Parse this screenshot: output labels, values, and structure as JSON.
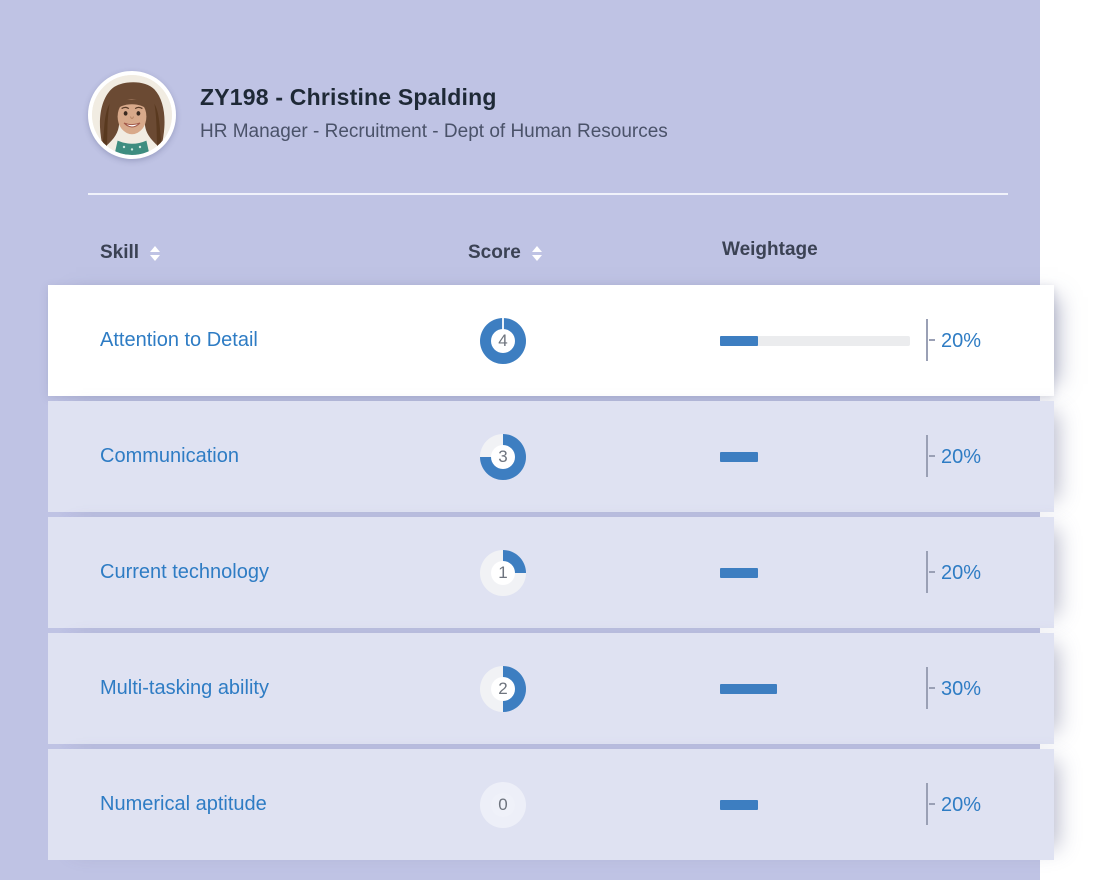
{
  "colors": {
    "page_background": "#bfc3e4",
    "row_background": "#dfe2f2",
    "highlight_row_background": "#ffffff",
    "accent_blue": "#2e7cc4",
    "fill_blue": "#3d7ec1",
    "ring_empty": "#f1f2f5"
  },
  "header": {
    "title": "ZY198 - Christine Spalding",
    "subtitle": "HR Manager - Recruitment - Dept of Human Resources"
  },
  "icons": {
    "sort": "sort-arrows-icon",
    "avatar": "employee-photo"
  },
  "table": {
    "columns": [
      {
        "key": "skill",
        "label": "Skill",
        "sortable": true
      },
      {
        "key": "score",
        "label": "Score",
        "sortable": true
      },
      {
        "key": "weightage",
        "label": "Weightage",
        "sortable": false
      }
    ],
    "score_max": 4,
    "rows": [
      {
        "skill": "Attention to Detail",
        "score": 4,
        "weightage_percent": 20,
        "weightage_label": "20%",
        "highlighted": true
      },
      {
        "skill": "Communication",
        "score": 3,
        "weightage_percent": 20,
        "weightage_label": "20%",
        "highlighted": false
      },
      {
        "skill": "Current technology",
        "score": 1,
        "weightage_percent": 20,
        "weightage_label": "20%",
        "highlighted": false
      },
      {
        "skill": "Multi-tasking ability",
        "score": 2,
        "weightage_percent": 30,
        "weightage_label": "30%",
        "highlighted": false
      },
      {
        "skill": "Numerical aptitude",
        "score": 0,
        "weightage_percent": 20,
        "weightage_label": "20%",
        "highlighted": false
      }
    ]
  }
}
